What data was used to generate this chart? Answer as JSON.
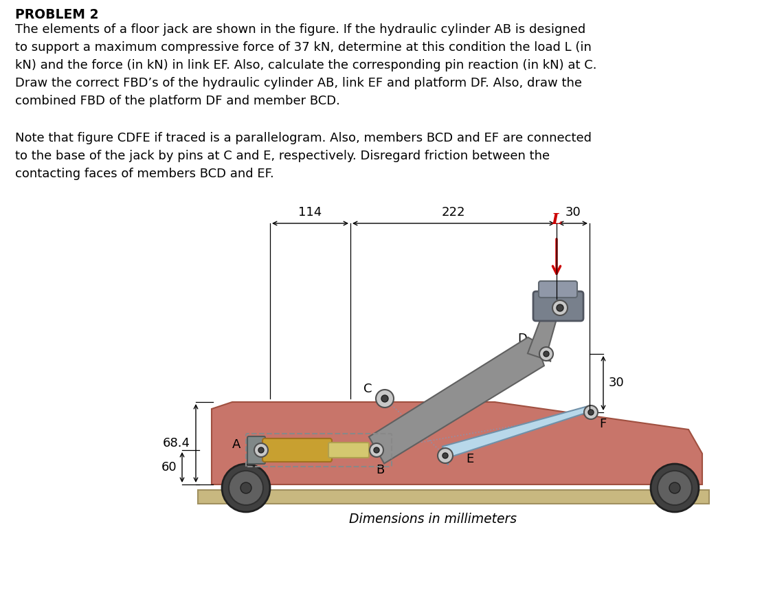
{
  "title": "PROBLEM 2",
  "bg_color": "#ffffff",
  "body_color": "#c8756a",
  "body_edge": "#a05040",
  "arm_color": "#909090",
  "arm_edge": "#606060",
  "link_color": "#b8d8ea",
  "link_edge": "#7090a8",
  "cyl_gold": "#c8a030",
  "cyl_gold_edge": "#a07020",
  "cyl_rod": "#d4c870",
  "cyl_rod_edge": "#b0a050",
  "cyl_cap": "#808888",
  "cyl_cap_edge": "#505858",
  "top_cyl_body": "#7a8090",
  "top_cyl_cap": "#909aa8",
  "top_cyl_ring": "#a0aab8",
  "wheel_dark": "#404040",
  "wheel_mid": "#606060",
  "ground_color": "#c8b880",
  "ground_edge": "#a09060",
  "pin_gray": "#c8c8c8",
  "pin_dark": "#404040",
  "load_color": "#cc0000",
  "dim_color": "#000000",
  "label_114": "114",
  "label_222": "222",
  "label_30h": "30",
  "label_30v": "30",
  "label_68": "68.4",
  "label_60": "60",
  "label_L": "L",
  "label_A": "A",
  "label_B": "B",
  "label_C": "C",
  "label_D": "D",
  "label_E": "E",
  "label_F": "F",
  "dim_label": "Dimensions in millimeters",
  "problem_lines": [
    "The elements of a floor jack are shown in the figure. If the hydraulic cylinder AB is designed",
    "to support a maximum compressive force of 37 kN, determine at this condition the load L (in",
    "kN) and the force (in kN) in link EF. Also, calculate the corresponding pin reaction (in kN) at C.",
    "Draw the correct FBD’s of the hydraulic cylinder AB, link EF and platform DF. Also, draw the",
    "combined FBD of the platform DF and member BCD."
  ],
  "note_lines": [
    "Note that figure CDFE if traced is a parallelogram. Also, members BCD and EF are connected",
    "to the base of the jack by pins at C and E, respectively. Disregard friction between the",
    "contacting faces of members BCD and EF."
  ]
}
